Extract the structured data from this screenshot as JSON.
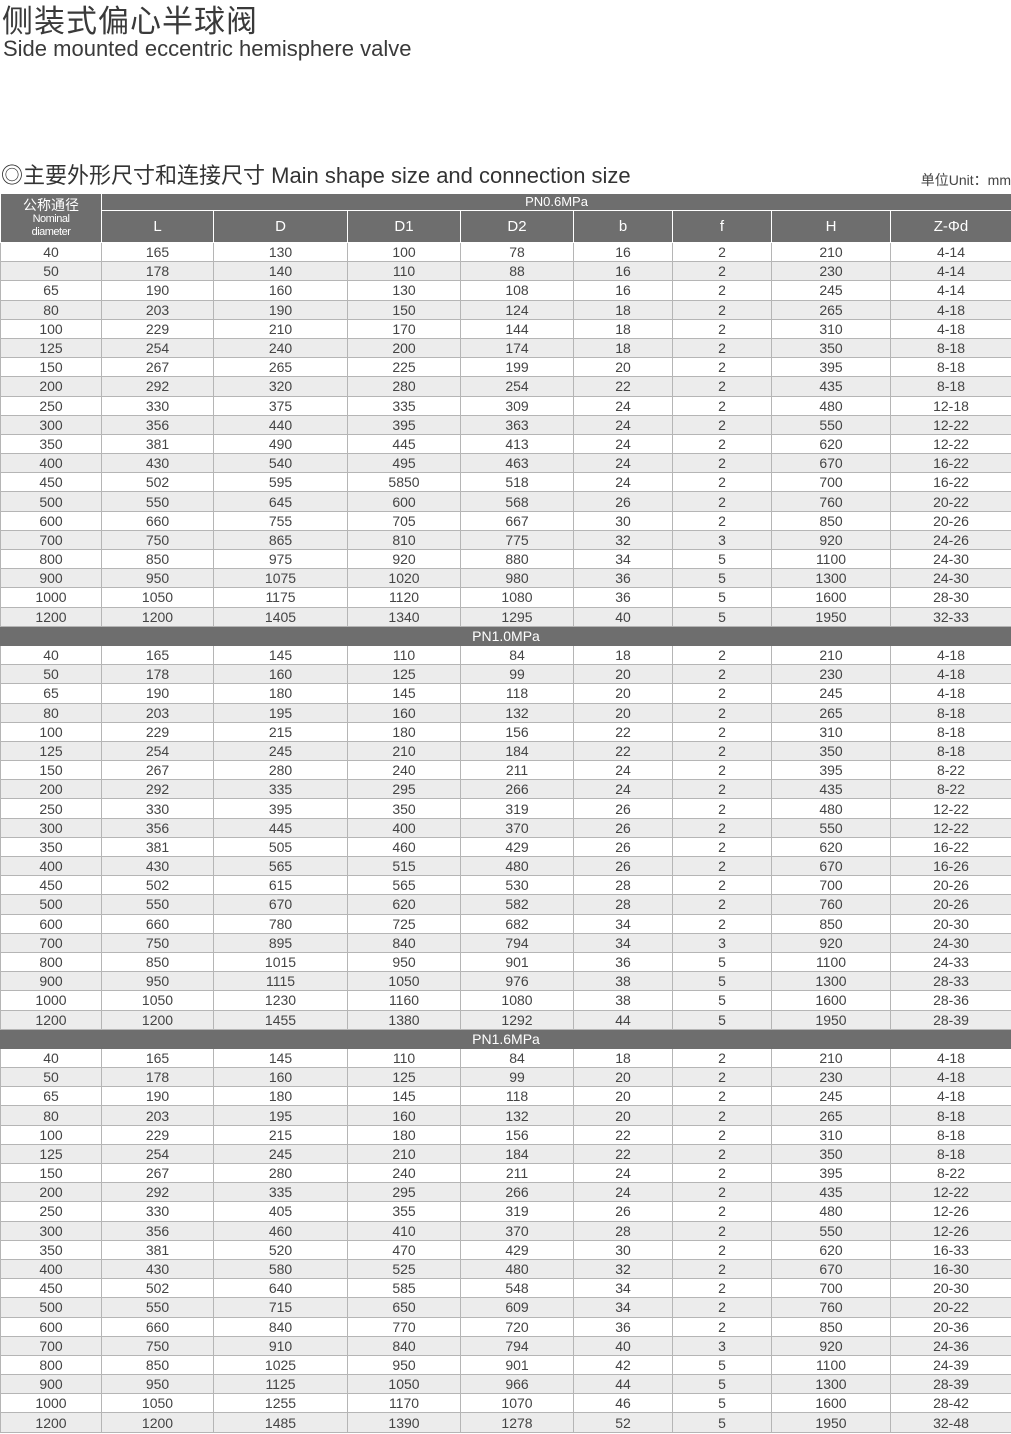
{
  "title_cn": "侧装式偏心半球阀",
  "title_en": "Side mounted eccentric hemisphere valve",
  "section_title": "◎主要外形尺寸和连接尺寸 Main shape size and connection size",
  "unit": "单位Unit：mm",
  "table": {
    "nominal_cn": "公称通径",
    "nominal_en1": "Nominal",
    "nominal_en2": "diameter",
    "columns": [
      "L",
      "D",
      "D1",
      "D2",
      "b",
      "f",
      "H",
      "Z-Φd"
    ],
    "sections": [
      {
        "label": "PN0.6MPa",
        "rows": [
          [
            "40",
            "165",
            "130",
            "100",
            "78",
            "16",
            "2",
            "210",
            "4-14"
          ],
          [
            "50",
            "178",
            "140",
            "110",
            "88",
            "16",
            "2",
            "230",
            "4-14"
          ],
          [
            "65",
            "190",
            "160",
            "130",
            "108",
            "16",
            "2",
            "245",
            "4-14"
          ],
          [
            "80",
            "203",
            "190",
            "150",
            "124",
            "18",
            "2",
            "265",
            "4-18"
          ],
          [
            "100",
            "229",
            "210",
            "170",
            "144",
            "18",
            "2",
            "310",
            "4-18"
          ],
          [
            "125",
            "254",
            "240",
            "200",
            "174",
            "18",
            "2",
            "350",
            "8-18"
          ],
          [
            "150",
            "267",
            "265",
            "225",
            "199",
            "20",
            "2",
            "395",
            "8-18"
          ],
          [
            "200",
            "292",
            "320",
            "280",
            "254",
            "22",
            "2",
            "435",
            "8-18"
          ],
          [
            "250",
            "330",
            "375",
            "335",
            "309",
            "24",
            "2",
            "480",
            "12-18"
          ],
          [
            "300",
            "356",
            "440",
            "395",
            "363",
            "24",
            "2",
            "550",
            "12-22"
          ],
          [
            "350",
            "381",
            "490",
            "445",
            "413",
            "24",
            "2",
            "620",
            "12-22"
          ],
          [
            "400",
            "430",
            "540",
            "495",
            "463",
            "24",
            "2",
            "670",
            "16-22"
          ],
          [
            "450",
            "502",
            "595",
            "5850",
            "518",
            "24",
            "2",
            "700",
            "16-22"
          ],
          [
            "500",
            "550",
            "645",
            "600",
            "568",
            "26",
            "2",
            "760",
            "20-22"
          ],
          [
            "600",
            "660",
            "755",
            "705",
            "667",
            "30",
            "2",
            "850",
            "20-26"
          ],
          [
            "700",
            "750",
            "865",
            "810",
            "775",
            "32",
            "3",
            "920",
            "24-26"
          ],
          [
            "800",
            "850",
            "975",
            "920",
            "880",
            "34",
            "5",
            "1100",
            "24-30"
          ],
          [
            "900",
            "950",
            "1075",
            "1020",
            "980",
            "36",
            "5",
            "1300",
            "24-30"
          ],
          [
            "1000",
            "1050",
            "1175",
            "1120",
            "1080",
            "36",
            "5",
            "1600",
            "28-30"
          ],
          [
            "1200",
            "1200",
            "1405",
            "1340",
            "1295",
            "40",
            "5",
            "1950",
            "32-33"
          ]
        ]
      },
      {
        "label": "PN1.0MPa",
        "rows": [
          [
            "40",
            "165",
            "145",
            "110",
            "84",
            "18",
            "2",
            "210",
            "4-18"
          ],
          [
            "50",
            "178",
            "160",
            "125",
            "99",
            "20",
            "2",
            "230",
            "4-18"
          ],
          [
            "65",
            "190",
            "180",
            "145",
            "118",
            "20",
            "2",
            "245",
            "4-18"
          ],
          [
            "80",
            "203",
            "195",
            "160",
            "132",
            "20",
            "2",
            "265",
            "8-18"
          ],
          [
            "100",
            "229",
            "215",
            "180",
            "156",
            "22",
            "2",
            "310",
            "8-18"
          ],
          [
            "125",
            "254",
            "245",
            "210",
            "184",
            "22",
            "2",
            "350",
            "8-18"
          ],
          [
            "150",
            "267",
            "280",
            "240",
            "211",
            "24",
            "2",
            "395",
            "8-22"
          ],
          [
            "200",
            "292",
            "335",
            "295",
            "266",
            "24",
            "2",
            "435",
            "8-22"
          ],
          [
            "250",
            "330",
            "395",
            "350",
            "319",
            "26",
            "2",
            "480",
            "12-22"
          ],
          [
            "300",
            "356",
            "445",
            "400",
            "370",
            "26",
            "2",
            "550",
            "12-22"
          ],
          [
            "350",
            "381",
            "505",
            "460",
            "429",
            "26",
            "2",
            "620",
            "16-22"
          ],
          [
            "400",
            "430",
            "565",
            "515",
            "480",
            "26",
            "2",
            "670",
            "16-26"
          ],
          [
            "450",
            "502",
            "615",
            "565",
            "530",
            "28",
            "2",
            "700",
            "20-26"
          ],
          [
            "500",
            "550",
            "670",
            "620",
            "582",
            "28",
            "2",
            "760",
            "20-26"
          ],
          [
            "600",
            "660",
            "780",
            "725",
            "682",
            "34",
            "2",
            "850",
            "20-30"
          ],
          [
            "700",
            "750",
            "895",
            "840",
            "794",
            "34",
            "3",
            "920",
            "24-30"
          ],
          [
            "800",
            "850",
            "1015",
            "950",
            "901",
            "36",
            "5",
            "1100",
            "24-33"
          ],
          [
            "900",
            "950",
            "1115",
            "1050",
            "976",
            "38",
            "5",
            "1300",
            "28-33"
          ],
          [
            "1000",
            "1050",
            "1230",
            "1160",
            "1080",
            "38",
            "5",
            "1600",
            "28-36"
          ],
          [
            "1200",
            "1200",
            "1455",
            "1380",
            "1292",
            "44",
            "5",
            "1950",
            "28-39"
          ]
        ]
      },
      {
        "label": "PN1.6MPa",
        "rows": [
          [
            "40",
            "165",
            "145",
            "110",
            "84",
            "18",
            "2",
            "210",
            "4-18"
          ],
          [
            "50",
            "178",
            "160",
            "125",
            "99",
            "20",
            "2",
            "230",
            "4-18"
          ],
          [
            "65",
            "190",
            "180",
            "145",
            "118",
            "20",
            "2",
            "245",
            "4-18"
          ],
          [
            "80",
            "203",
            "195",
            "160",
            "132",
            "20",
            "2",
            "265",
            "8-18"
          ],
          [
            "100",
            "229",
            "215",
            "180",
            "156",
            "22",
            "2",
            "310",
            "8-18"
          ],
          [
            "125",
            "254",
            "245",
            "210",
            "184",
            "22",
            "2",
            "350",
            "8-18"
          ],
          [
            "150",
            "267",
            "280",
            "240",
            "211",
            "24",
            "2",
            "395",
            "8-22"
          ],
          [
            "200",
            "292",
            "335",
            "295",
            "266",
            "24",
            "2",
            "435",
            "12-22"
          ],
          [
            "250",
            "330",
            "405",
            "355",
            "319",
            "26",
            "2",
            "480",
            "12-26"
          ],
          [
            "300",
            "356",
            "460",
            "410",
            "370",
            "28",
            "2",
            "550",
            "12-26"
          ],
          [
            "350",
            "381",
            "520",
            "470",
            "429",
            "30",
            "2",
            "620",
            "16-33"
          ],
          [
            "400",
            "430",
            "580",
            "525",
            "480",
            "32",
            "2",
            "670",
            "16-30"
          ],
          [
            "450",
            "502",
            "640",
            "585",
            "548",
            "34",
            "2",
            "700",
            "20-30"
          ],
          [
            "500",
            "550",
            "715",
            "650",
            "609",
            "34",
            "2",
            "760",
            "20-22"
          ],
          [
            "600",
            "660",
            "840",
            "770",
            "720",
            "36",
            "2",
            "850",
            "20-36"
          ],
          [
            "700",
            "750",
            "910",
            "840",
            "794",
            "40",
            "3",
            "920",
            "24-36"
          ],
          [
            "800",
            "850",
            "1025",
            "950",
            "901",
            "42",
            "5",
            "1100",
            "24-39"
          ],
          [
            "900",
            "950",
            "1125",
            "1050",
            "966",
            "44",
            "5",
            "1300",
            "28-39"
          ],
          [
            "1000",
            "1050",
            "1255",
            "1170",
            "1070",
            "46",
            "5",
            "1600",
            "28-42"
          ],
          [
            "1200",
            "1200",
            "1485",
            "1390",
            "1278",
            "52",
            "5",
            "1950",
            "32-48"
          ]
        ]
      }
    ]
  }
}
